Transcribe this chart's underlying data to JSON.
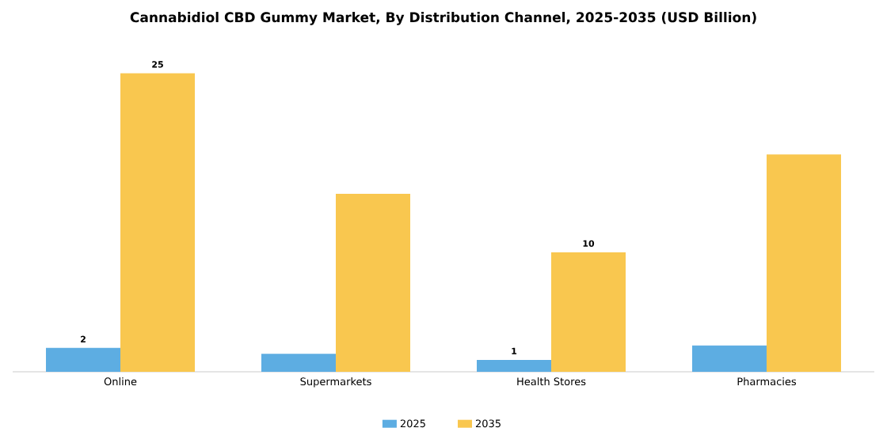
{
  "chart_data": {
    "type": "bar",
    "title": "Cannabidiol CBD Gummy Market, By Distribution Channel, 2025-2035 (USD Billion)",
    "categories": [
      "Online",
      "Supermarkets",
      "Health Stores",
      "Pharmacies"
    ],
    "series": [
      {
        "name": "2025",
        "color": "#5dade2",
        "values": [
          2,
          1.5,
          1,
          2.2
        ],
        "value_labels": [
          "2",
          null,
          "1",
          null
        ]
      },
      {
        "name": "2035",
        "color": "#f9c74f",
        "values": [
          25,
          14.9,
          10,
          18.2
        ],
        "value_labels": [
          "25",
          null,
          "10",
          null
        ]
      }
    ],
    "legend": "bottom"
  }
}
